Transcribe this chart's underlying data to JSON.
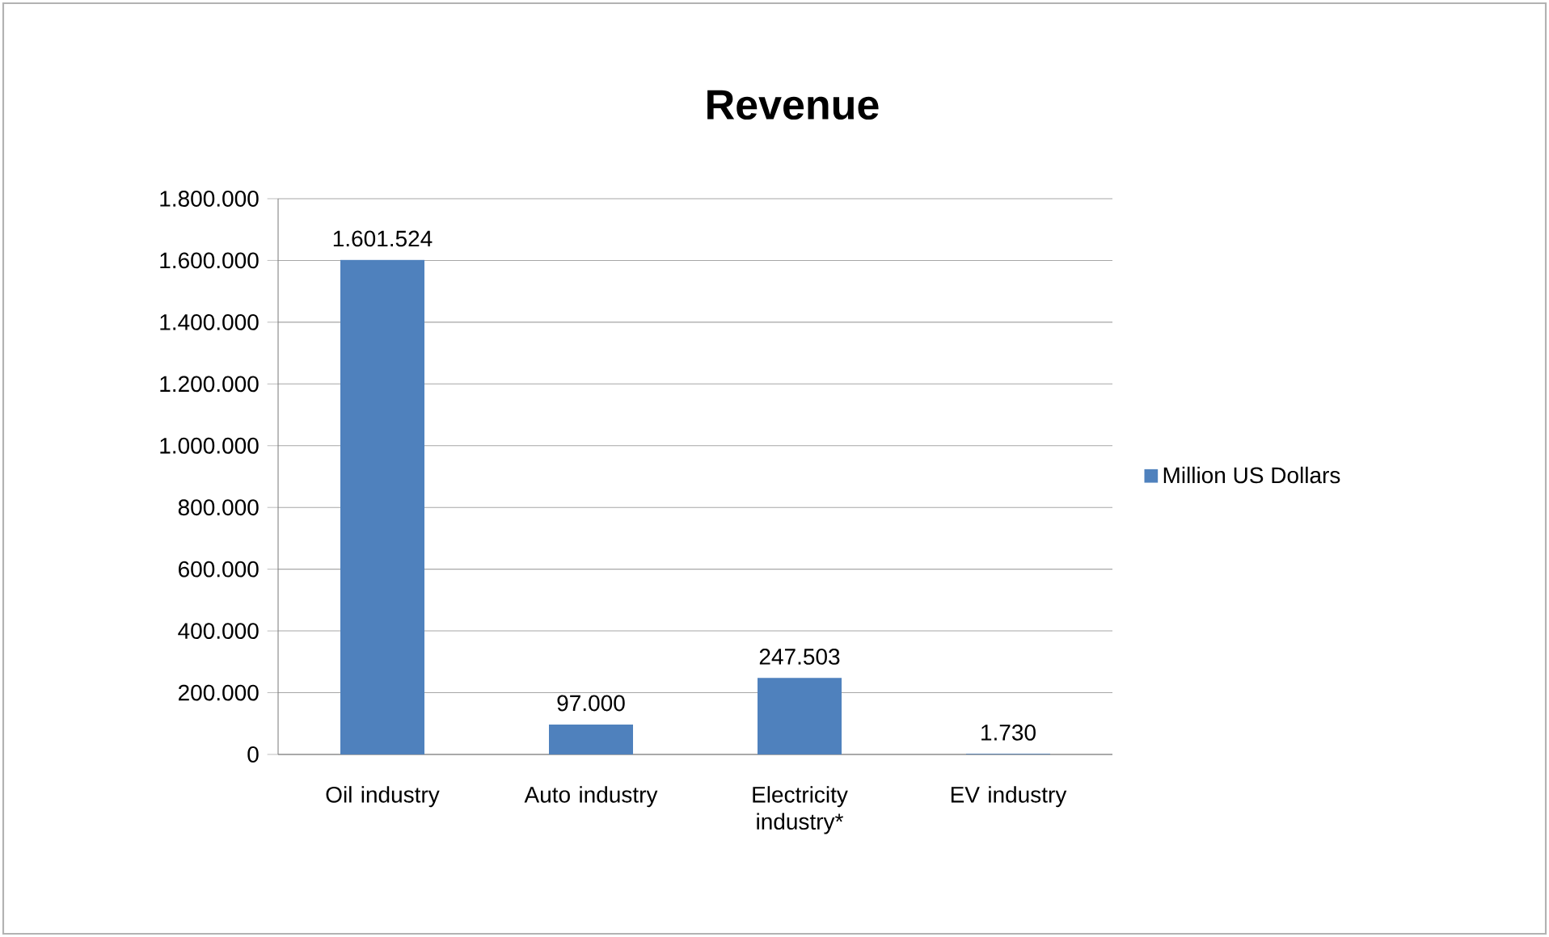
{
  "chart_data": {
    "type": "bar",
    "title": "Revenue",
    "categories": [
      "Oil industry",
      "Auto industry",
      "Electricity industry*",
      "EV industry"
    ],
    "series": [
      {
        "name": "Million US Dollars",
        "color": "#4f81bd",
        "values": [
          1601524,
          97000,
          247503,
          1730
        ],
        "value_labels": [
          "1.601.524",
          "97.000",
          "247.503",
          "1.730"
        ]
      }
    ],
    "ylim": [
      0,
      1800000
    ],
    "yticks": [
      0,
      {
        "value": 200000,
        "label": "200.000"
      },
      {
        "value": 400000,
        "label": "400.000"
      },
      {
        "value": 600000,
        "label": "600.000"
      },
      {
        "value": 800000,
        "label": "800.000"
      },
      {
        "value": 1000000,
        "label": "1.000.000"
      },
      {
        "value": 1200000,
        "label": "1.200.000"
      },
      {
        "value": 1400000,
        "label": "1.400.000"
      },
      {
        "value": 1600000,
        "label": "1.600.000"
      },
      {
        "value": 1800000,
        "label": "1.800.000"
      }
    ],
    "grid": "y",
    "legend": "right"
  }
}
